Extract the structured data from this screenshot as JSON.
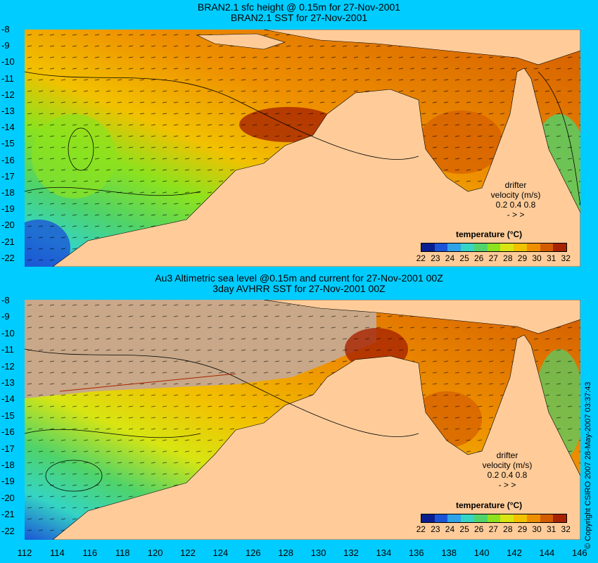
{
  "panels": [
    {
      "title_line1": "BRAN2.1 sfc height @ 0.15m for 27-Nov-2001",
      "title_line2": "BRAN2.1 SST for 27-Nov-2001",
      "legend_title": "temperature (°C)",
      "drifter_title": "drifter",
      "drifter_sub": "velocity (m/s)",
      "drifter_scale": "0.2 0.4 0.8",
      "drifter_arrows": "-  >  >"
    },
    {
      "title_line1": "Au3 Altimetric sea level  @0.15m and current for 27-Nov-2001 00Z",
      "title_line2": "3day AVHRR SST for 27-Nov-2001 00Z",
      "legend_title": "temperature (°C)",
      "drifter_title": "drifter",
      "drifter_sub": "velocity (m/s)",
      "drifter_scale": "0.2 0.4 0.8",
      "drifter_arrows": "-  >  >"
    }
  ],
  "axes": {
    "lat_ticks": [
      "-8",
      "-9",
      "-10",
      "-11",
      "-12",
      "-13",
      "-14",
      "-15",
      "-16",
      "-17",
      "-18",
      "-19",
      "-20",
      "-21",
      "-22"
    ],
    "lon_ticks": [
      "112",
      "114",
      "116",
      "118",
      "120",
      "122",
      "124",
      "126",
      "128",
      "130",
      "132",
      "134",
      "136",
      "138",
      "140",
      "142",
      "144",
      "146"
    ]
  },
  "colorbar": {
    "labels": [
      "22",
      "23",
      "24",
      "25",
      "26",
      "27",
      "28",
      "29",
      "30",
      "31",
      "32"
    ],
    "colors": [
      "#0a1f8f",
      "#1b55d6",
      "#2ea3e8",
      "#35d4c4",
      "#4fd36a",
      "#8ce21e",
      "#d8e512",
      "#f2c100",
      "#ee8f00",
      "#d45c00",
      "#a82300"
    ]
  },
  "copyright": "© Copyright CSIRO 2007  28-May-2007 03:37:43",
  "colors": {
    "background": "#00ccff",
    "land": "#ffcc99",
    "cloud": "#c8a888"
  }
}
